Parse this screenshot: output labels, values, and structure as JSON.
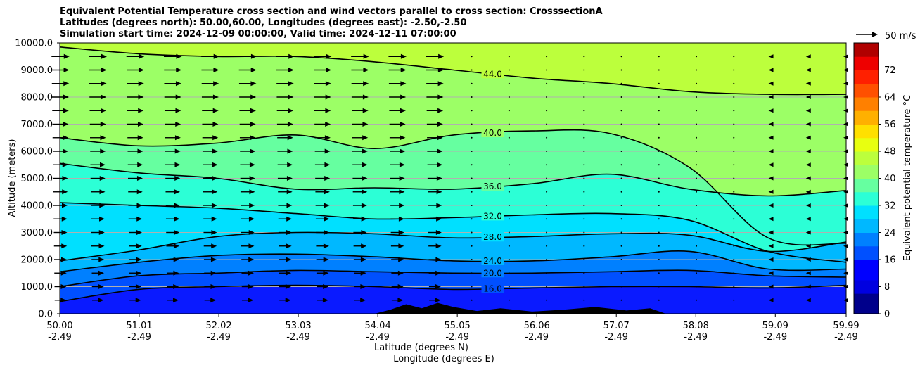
{
  "chart_data": {
    "type": "contour",
    "title_lines": [
      "Equivalent Potential Temperature cross section and wind vectors parallel to cross section: CrosssectionA",
      "Latitudes (degrees north): 50.00,60.00, Longitudes (degrees east): -2.50,-2.50",
      "Simulation start time: 2024-12-09 00:00:00, Valid time: 2024-12-11 07:00:00"
    ],
    "ylabel": "Altitude (meters)",
    "xlabel_lat": "Latitude (degrees N)",
    "xlabel_lon": "Longitude (degrees E)",
    "ylim": [
      0,
      10000
    ],
    "yticks": [
      "0.0",
      "1000.0",
      "2000.0",
      "3000.0",
      "4000.0",
      "5000.0",
      "6000.0",
      "7000.0",
      "8000.0",
      "9000.0",
      "10000.0"
    ],
    "xlim": [
      50.0,
      59.99
    ],
    "xticks": [
      {
        "lat": "50.00",
        "lon": "-2.49"
      },
      {
        "lat": "51.01",
        "lon": "-2.49"
      },
      {
        "lat": "52.02",
        "lon": "-2.49"
      },
      {
        "lat": "53.03",
        "lon": "-2.49"
      },
      {
        "lat": "54.04",
        "lon": "-2.49"
      },
      {
        "lat": "55.05",
        "lon": "-2.49"
      },
      {
        "lat": "56.06",
        "lon": "-2.49"
      },
      {
        "lat": "57.07",
        "lon": "-2.49"
      },
      {
        "lat": "58.08",
        "lon": "-2.49"
      },
      {
        "lat": "59.09",
        "lon": "-2.49"
      },
      {
        "lat": "59.99",
        "lon": "-2.49"
      }
    ],
    "quiver_key": "50 m/s",
    "colorbar": {
      "label": "Equivalent potential temperature °C",
      "range": [
        0,
        80
      ],
      "ticks": [
        "0",
        "8",
        "16",
        "24",
        "32",
        "40",
        "48",
        "56",
        "64",
        "72"
      ]
    },
    "contours": [
      {
        "value": 16,
        "label": "16.0",
        "x": [
          50.0,
          51.0,
          52.0,
          53.0,
          54.0,
          55.0,
          56.0,
          57.0,
          58.0,
          59.0,
          59.99
        ],
        "y": [
          450,
          900,
          1000,
          1050,
          1000,
          900,
          950,
          1000,
          1000,
          950,
          1050
        ]
      },
      {
        "value": 20,
        "label": "20.0",
        "x": [
          50.0,
          51.0,
          52.0,
          53.0,
          54.0,
          55.0,
          56.0,
          57.0,
          58.0,
          59.0,
          59.99
        ],
        "y": [
          1000,
          1400,
          1500,
          1600,
          1550,
          1500,
          1500,
          1550,
          1600,
          1400,
          1350
        ]
      },
      {
        "value": 24,
        "label": "24.0",
        "x": [
          50.0,
          51.0,
          52.0,
          53.0,
          54.0,
          55.0,
          56.0,
          57.0,
          58.0,
          59.0,
          59.99
        ],
        "y": [
          1550,
          1900,
          2150,
          2200,
          2100,
          1950,
          1950,
          2100,
          2300,
          1650,
          1650
        ]
      },
      {
        "value": 28,
        "label": "28.0",
        "x": [
          50.0,
          51.0,
          52.0,
          53.0,
          54.0,
          55.0,
          56.0,
          57.0,
          58.0,
          59.0,
          59.99
        ],
        "y": [
          1950,
          2350,
          2850,
          3000,
          2950,
          2800,
          2850,
          2950,
          2900,
          2300,
          2650
        ]
      },
      {
        "value": 32,
        "label": "32.0",
        "x": [
          50.0,
          51.0,
          52.0,
          53.0,
          54.0,
          55.0,
          56.0,
          57.0,
          58.0,
          59.0,
          59.99
        ],
        "y": [
          4100,
          4000,
          3900,
          3700,
          3500,
          3550,
          3650,
          3700,
          3450,
          2300,
          1900
        ]
      },
      {
        "value": 36,
        "label": "36.0",
        "x": [
          50.0,
          51.0,
          52.0,
          53.0,
          54.0,
          55.0,
          56.0,
          57.0,
          58.0,
          59.0,
          59.99
        ],
        "y": [
          5550,
          5200,
          5000,
          4600,
          4650,
          4600,
          4800,
          5150,
          4600,
          4350,
          4550
        ]
      },
      {
        "value": 40,
        "label": "40.0",
        "x": [
          50.0,
          51.0,
          52.0,
          53.0,
          54.0,
          55.0,
          56.0,
          57.0,
          58.0,
          59.0,
          59.99
        ],
        "y": [
          6500,
          6200,
          6300,
          6600,
          6100,
          6600,
          6750,
          6650,
          5400,
          2800,
          2600
        ]
      },
      {
        "value": 44,
        "label": "44.0",
        "x": [
          50.0,
          51.0,
          52.0,
          53.0,
          54.0,
          55.0,
          56.0,
          57.0,
          58.0,
          59.0,
          59.99
        ],
        "y": [
          9850,
          9600,
          9500,
          9500,
          9300,
          9000,
          8700,
          8500,
          8200,
          8100,
          8100
        ]
      }
    ],
    "filled_bands": [
      {
        "from": 0,
        "to": 16,
        "color": "#0a1aff",
        "top_y": [
          450,
          900,
          1000,
          1050,
          1000,
          900,
          950,
          1000,
          1000,
          950,
          1050
        ]
      },
      {
        "from": 16,
        "to": 20,
        "color": "#0050ff",
        "top_y": [
          1000,
          1400,
          1500,
          1600,
          1550,
          1500,
          1500,
          1550,
          1600,
          1400,
          1350
        ]
      },
      {
        "from": 20,
        "to": 24,
        "color": "#0080ff",
        "top_y": [
          1550,
          1900,
          2150,
          2200,
          2100,
          1950,
          1950,
          2100,
          2300,
          1650,
          1650
        ]
      },
      {
        "from": 24,
        "to": 28,
        "color": "#00b8ff",
        "top_y": [
          1950,
          2350,
          2850,
          3000,
          2950,
          2800,
          2850,
          2950,
          2900,
          2300,
          2650
        ]
      },
      {
        "from": 28,
        "to": 32,
        "color": "#00e0ff",
        "top_y": [
          4100,
          4000,
          3900,
          3700,
          3500,
          3550,
          3650,
          3700,
          3450,
          2300,
          1900
        ]
      },
      {
        "from": 32,
        "to": 36,
        "color": "#2cffd6",
        "top_y": [
          5550,
          5200,
          5000,
          4600,
          4650,
          4600,
          4800,
          5150,
          4600,
          4350,
          4550
        ]
      },
      {
        "from": 36,
        "to": 40,
        "color": "#66ffa0",
        "top_y": [
          6500,
          6200,
          6300,
          6600,
          6100,
          6600,
          6750,
          6650,
          5400,
          2800,
          2600
        ]
      },
      {
        "from": 40,
        "to": 44,
        "color": "#9cff66",
        "top_y": [
          9850,
          9600,
          9500,
          9500,
          9300,
          9000,
          8700,
          8500,
          8200,
          8100,
          8100
        ]
      },
      {
        "from": 44,
        "to": 48,
        "color": "#bcff3c",
        "top_y": [
          10000,
          10000,
          10000,
          10000,
          10000,
          10000,
          10000,
          10000,
          10000,
          10000,
          10000
        ]
      }
    ],
    "terrain": {
      "x": [
        54.0,
        54.2,
        54.4,
        54.6,
        54.8,
        55.0,
        55.3,
        55.6,
        56.0,
        56.4,
        56.8,
        57.2,
        57.5,
        57.7
      ],
      "y": [
        0,
        150,
        350,
        200,
        400,
        250,
        100,
        200,
        80,
        150,
        250,
        120,
        200,
        0
      ]
    }
  }
}
